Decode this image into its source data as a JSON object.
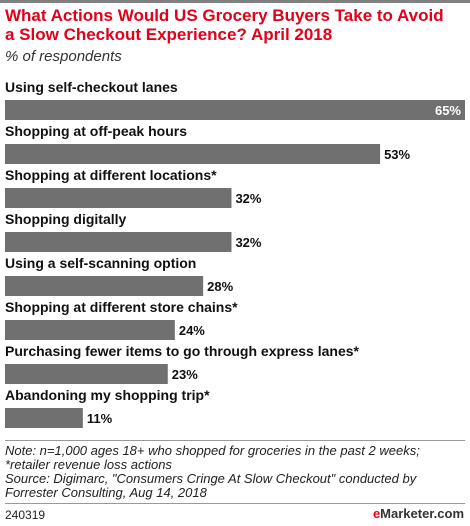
{
  "header": {
    "title_line1": "What Actions Would US Grocery Buyers Take to Avoid",
    "title_line2": "a Slow Checkout Experience? April 2018",
    "subtitle": "% of respondents"
  },
  "chart_data": {
    "type": "bar",
    "orientation": "horizontal",
    "categories": [
      "Using self-checkout lanes",
      "Shopping at off-peak hours",
      "Shopping at different locations*",
      "Shopping digitally",
      "Using a self-scanning option",
      "Shopping at different store chains*",
      "Purchasing fewer items to go through express lanes*",
      "Abandoning my shopping trip*"
    ],
    "values": [
      65,
      53,
      32,
      32,
      28,
      24,
      23,
      11
    ],
    "value_labels": [
      "65%",
      "53%",
      "32%",
      "32%",
      "28%",
      "24%",
      "23%",
      "11%"
    ],
    "xlim": [
      0,
      65
    ],
    "grid": false,
    "legend": "none",
    "bar_color": "#707070"
  },
  "footer": {
    "note_lines": [
      "Note: n=1,000 ages 18+ who shopped for groceries in the past 2 weeks;",
      "*retailer revenue loss actions",
      "Source: Digimarc, \"Consumers Cringe At Slow Checkout\" conducted by",
      "Forrester Consulting, Aug 14, 2018"
    ],
    "id": "240319",
    "brand_e": "e",
    "brand_rest": "Marketer",
    "brand_suffix": ".com"
  },
  "colors": {
    "title": "#e2001a",
    "bar": "#707070",
    "text": "#111111"
  }
}
